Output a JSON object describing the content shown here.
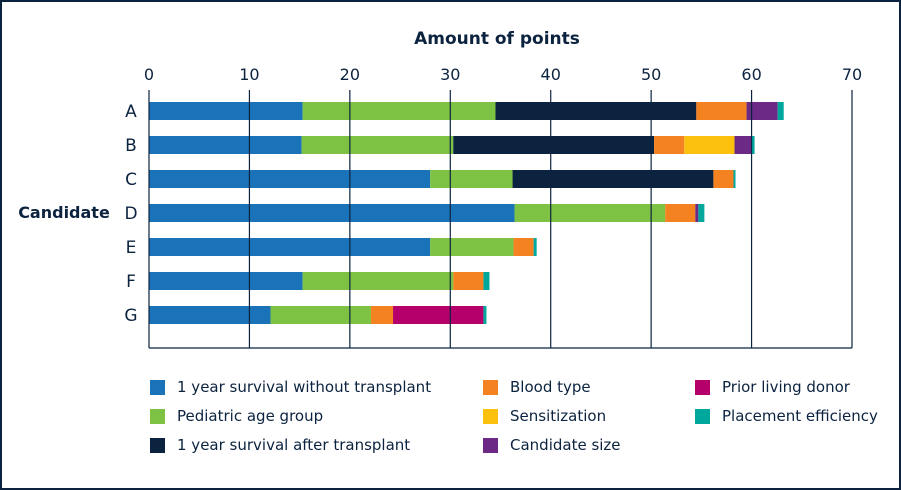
{
  "chart_data": {
    "type": "bar",
    "orientation": "horizontal",
    "stacked": true,
    "title": "Amount of points",
    "xlabel": "Amount of points",
    "ylabel": "Candidate",
    "xlim": [
      0,
      70
    ],
    "xticks": [
      "0",
      "10",
      "20",
      "30",
      "40",
      "50",
      "60",
      "70"
    ],
    "categories": [
      "A",
      "B",
      "C",
      "D",
      "E",
      "F",
      "G"
    ],
    "series": [
      {
        "name": "1 year survival without transplant",
        "color": "#1a72b8",
        "values": [
          15.3,
          15.2,
          28.0,
          36.4,
          28.0,
          15.3,
          12.1
        ]
      },
      {
        "name": "Pediatric age group",
        "color": "#7dc242",
        "values": [
          19.2,
          15.1,
          8.2,
          15.0,
          8.3,
          15.0,
          10.0
        ]
      },
      {
        "name": "1 year survival after transplant",
        "color": "#0c2340",
        "values": [
          20.0,
          20.0,
          20.0,
          0,
          0,
          0,
          0
        ]
      },
      {
        "name": "Blood type",
        "color": "#f58220",
        "values": [
          5.0,
          3.0,
          2.0,
          3.0,
          2.0,
          3.0,
          2.2
        ]
      },
      {
        "name": "Sensitization",
        "color": "#fbc10e",
        "values": [
          0,
          5.0,
          0,
          0,
          0,
          0,
          0
        ]
      },
      {
        "name": "Candidate size",
        "color": "#6c2a86",
        "values": [
          3.1,
          1.7,
          0,
          0.3,
          0,
          0,
          0
        ]
      },
      {
        "name": "Prior living donor",
        "color": "#b5006b",
        "values": [
          0,
          0,
          0,
          0,
          0,
          0,
          9.0
        ]
      },
      {
        "name": "Placement efficiency",
        "color": "#00a79d",
        "values": [
          0.6,
          0.3,
          0.2,
          0.6,
          0.3,
          0.6,
          0.3
        ]
      }
    ],
    "legend_position": "bottom",
    "grid": true
  },
  "colors": {
    "axis": "#0c2340",
    "text": "#0c2340"
  }
}
